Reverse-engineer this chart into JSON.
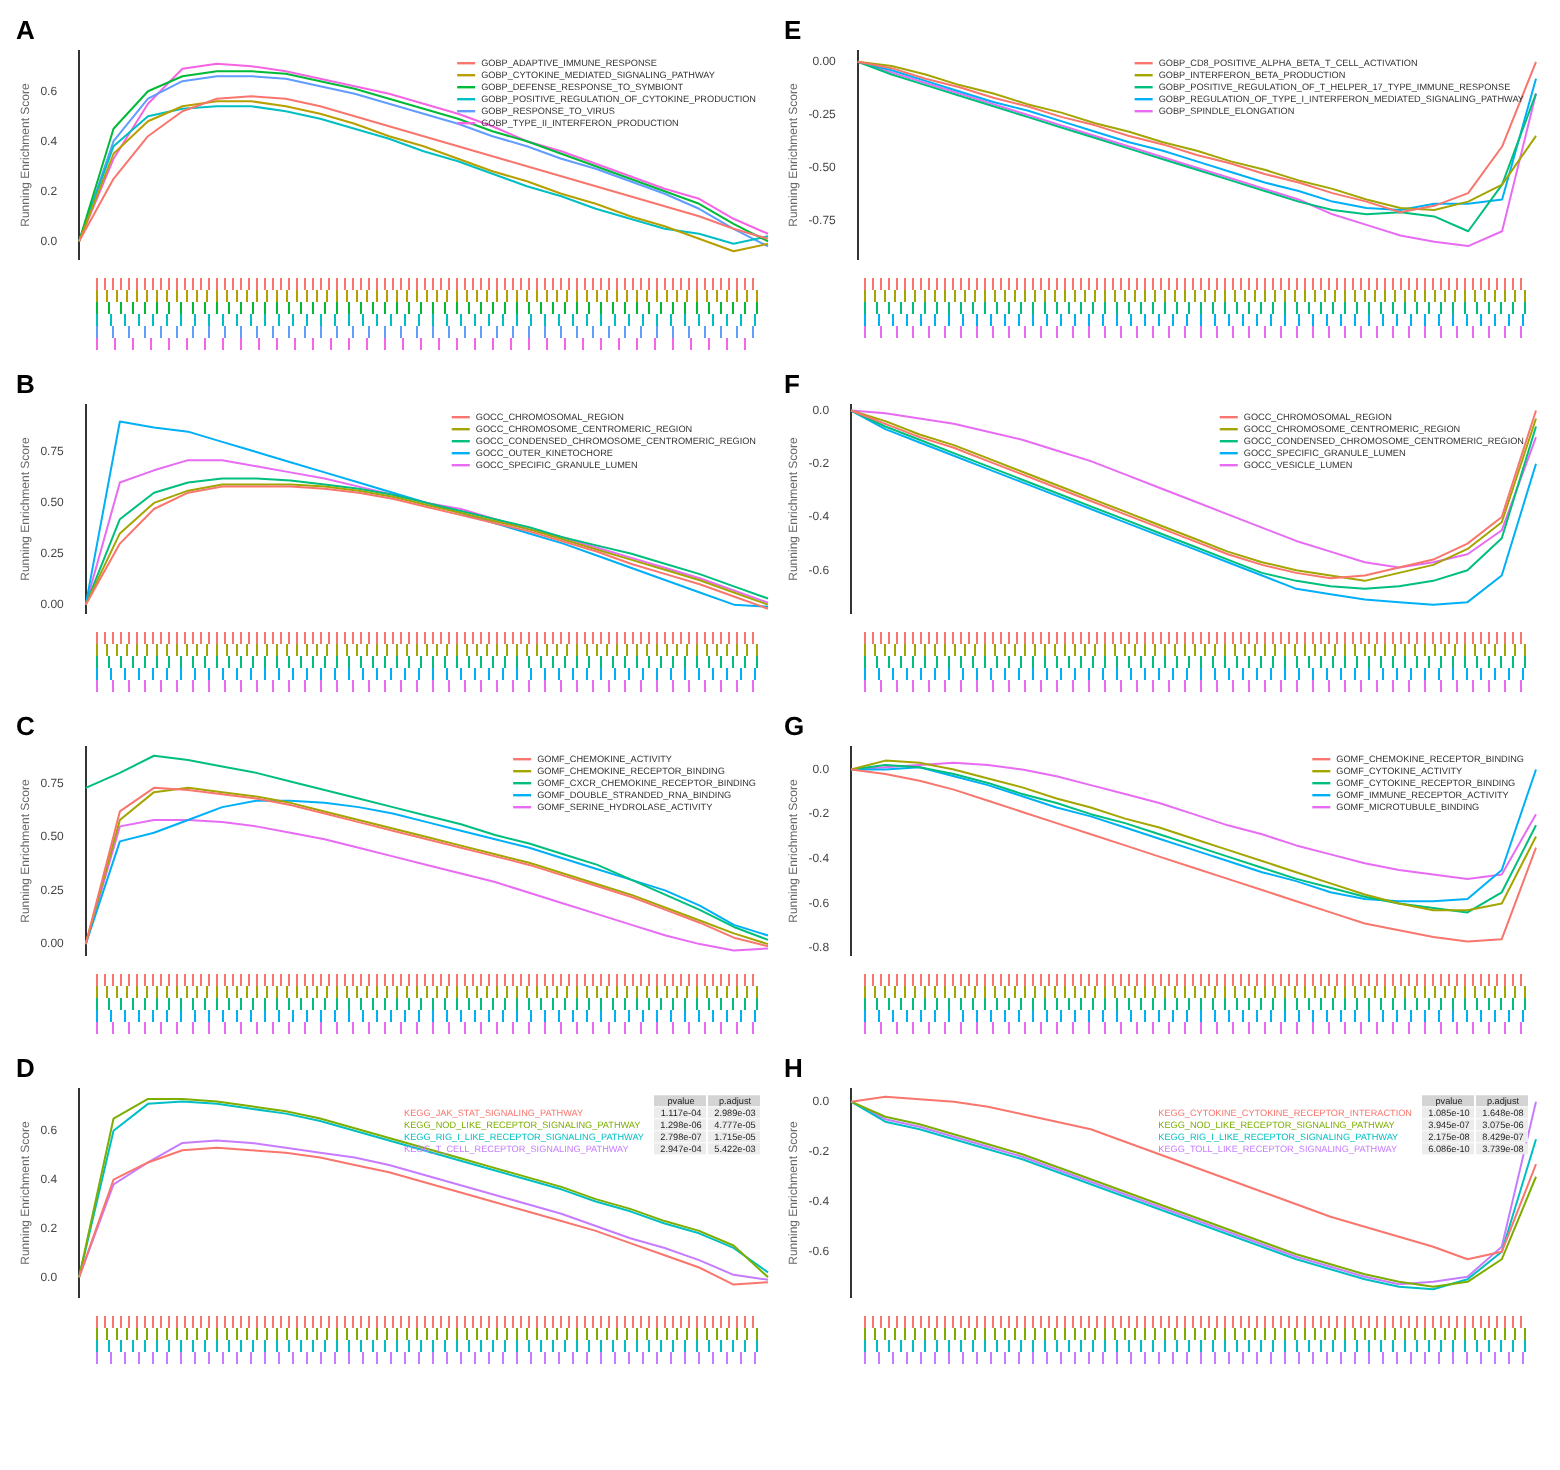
{
  "chart_data": [
    {
      "type": "line",
      "title": "A",
      "ylabel": "Running Enrichment Score",
      "categories": [
        null,
        null,
        null,
        null,
        null,
        null,
        null,
        null,
        null,
        null,
        null,
        null,
        null,
        null,
        null,
        null,
        null,
        null,
        null,
        null,
        null
      ],
      "ylim": [
        -0.07,
        0.76
      ],
      "yticks": [
        {
          "value": 0,
          "label": "0.0"
        },
        {
          "value": 0.2,
          "label": "0.2"
        },
        {
          "value": 0.4,
          "label": "0.4"
        },
        {
          "value": 0.6,
          "label": "0.6"
        }
      ],
      "tick_labels": "y",
      "legend": "top right",
      "series": [
        {
          "name": "GOBP_ADAPTIVE_IMMUNE_RESPONSE",
          "color": "#f8766d",
          "values": [
            0,
            0.25,
            0.42,
            0.52,
            0.57,
            0.58,
            0.57,
            0.54,
            0.5,
            0.46,
            0.42,
            0.38,
            0.34,
            0.3,
            0.26,
            0.22,
            0.18,
            0.14,
            0.1,
            0.05,
            0.01
          ]
        },
        {
          "name": "GOBP_CYTOKINE_MEDIATED_SIGNALING_PATHWAY",
          "color": "#b79f00",
          "values": [
            0,
            0.35,
            0.48,
            0.54,
            0.56,
            0.56,
            0.54,
            0.51,
            0.47,
            0.42,
            0.38,
            0.33,
            0.28,
            0.24,
            0.19,
            0.15,
            0.1,
            0.06,
            0.01,
            -0.04,
            -0.01
          ]
        },
        {
          "name": "GOBP_DEFENSE_RESPONSE_TO_SYMBIONT",
          "color": "#00ba38",
          "values": [
            0,
            0.45,
            0.6,
            0.66,
            0.68,
            0.68,
            0.67,
            0.64,
            0.61,
            0.57,
            0.53,
            0.49,
            0.44,
            0.4,
            0.35,
            0.3,
            0.25,
            0.2,
            0.15,
            0.07,
            0
          ]
        },
        {
          "name": "GOBP_POSITIVE_REGULATION_OF_CYTOKINE_PRODUCTION",
          "color": "#00bfc4",
          "values": [
            0,
            0.38,
            0.5,
            0.53,
            0.54,
            0.54,
            0.52,
            0.49,
            0.45,
            0.41,
            0.36,
            0.32,
            0.27,
            0.22,
            0.18,
            0.13,
            0.09,
            0.05,
            0.03,
            -0.01,
            0.02
          ]
        },
        {
          "name": "GOBP_RESPONSE_TO_VIRUS",
          "color": "#619cff",
          "values": [
            0,
            0.4,
            0.57,
            0.64,
            0.66,
            0.66,
            0.65,
            0.62,
            0.59,
            0.55,
            0.51,
            0.47,
            0.42,
            0.38,
            0.33,
            0.29,
            0.24,
            0.19,
            0.13,
            0.05,
            -0.02
          ]
        },
        {
          "name": "GOBP_TYPE_II_INTERFERON_PRODUCTION",
          "color": "#f564e3",
          "values": [
            0,
            0.33,
            0.55,
            0.69,
            0.71,
            0.7,
            0.68,
            0.65,
            0.62,
            0.59,
            0.55,
            0.51,
            0.46,
            0.4,
            0.36,
            0.31,
            0.26,
            0.21,
            0.17,
            0.09,
            0.03
          ]
        }
      ]
    },
    {
      "type": "line",
      "title": "B",
      "ylabel": "Running Enrichment Score",
      "categories": [
        null,
        null,
        null,
        null,
        null,
        null,
        null,
        null,
        null,
        null,
        null,
        null,
        null,
        null,
        null,
        null,
        null,
        null,
        null,
        null,
        null
      ],
      "ylim": [
        -0.04,
        0.98
      ],
      "yticks": [
        {
          "value": 0,
          "label": "0.00"
        },
        {
          "value": 0.25,
          "label": "0.25"
        },
        {
          "value": 0.5,
          "label": "0.50"
        },
        {
          "value": 0.75,
          "label": "0.75"
        }
      ],
      "tick_labels": "y",
      "legend": "top right",
      "series": [
        {
          "name": "GOCC_CHROMOSOMAL_REGION",
          "color": "#f8766d",
          "values": [
            0,
            0.3,
            0.47,
            0.55,
            0.58,
            0.58,
            0.58,
            0.57,
            0.55,
            0.52,
            0.48,
            0.44,
            0.4,
            0.36,
            0.31,
            0.26,
            0.2,
            0.15,
            0.1,
            0.04,
            -0.02
          ]
        },
        {
          "name": "GOCC_CHROMOSOME_CENTROMERIC_REGION",
          "color": "#a3a500",
          "values": [
            0,
            0.35,
            0.5,
            0.56,
            0.59,
            0.59,
            0.59,
            0.58,
            0.56,
            0.53,
            0.49,
            0.45,
            0.41,
            0.37,
            0.32,
            0.27,
            0.22,
            0.17,
            0.12,
            0.06,
            0
          ]
        },
        {
          "name": "GOCC_CONDENSED_CHROMOSOME_CENTROMERIC_REGION",
          "color": "#00bf7d",
          "values": [
            0,
            0.42,
            0.55,
            0.6,
            0.62,
            0.62,
            0.61,
            0.59,
            0.57,
            0.54,
            0.5,
            0.46,
            0.42,
            0.38,
            0.33,
            0.29,
            0.25,
            0.2,
            0.15,
            0.09,
            0.03
          ]
        },
        {
          "name": "GOCC_OUTER_KINETOCHORE",
          "color": "#00b0f6",
          "values": [
            0,
            0.9,
            0.87,
            0.85,
            0.8,
            0.75,
            0.7,
            0.65,
            0.6,
            0.55,
            0.5,
            0.45,
            0.4,
            0.35,
            0.3,
            0.24,
            0.18,
            0.12,
            0.06,
            0,
            -0.01
          ]
        },
        {
          "name": "GOCC_SPECIFIC_GRANULE_LUMEN",
          "color": "#e76bf3",
          "values": [
            0,
            0.6,
            0.66,
            0.71,
            0.71,
            0.68,
            0.65,
            0.62,
            0.58,
            0.54,
            0.5,
            0.47,
            0.42,
            0.37,
            0.33,
            0.28,
            0.23,
            0.18,
            0.13,
            0.07,
            0.01
          ]
        }
      ]
    },
    {
      "type": "line",
      "title": "C",
      "ylabel": "Running Enrichment Score",
      "categories": [
        null,
        null,
        null,
        null,
        null,
        null,
        null,
        null,
        null,
        null,
        null,
        null,
        null,
        null,
        null,
        null,
        null,
        null,
        null,
        null,
        null
      ],
      "ylim": [
        -0.05,
        0.92
      ],
      "yticks": [
        {
          "value": 0,
          "label": "0.00"
        },
        {
          "value": 0.25,
          "label": "0.25"
        },
        {
          "value": 0.5,
          "label": "0.50"
        },
        {
          "value": 0.75,
          "label": "0.75"
        }
      ],
      "tick_labels": "y",
      "legend": "top right",
      "series": [
        {
          "name": "GOMF_CHEMOKINE_ACTIVITY",
          "color": "#f8766d",
          "values": [
            0,
            0.62,
            0.73,
            0.72,
            0.7,
            0.68,
            0.65,
            0.61,
            0.57,
            0.53,
            0.49,
            0.45,
            0.41,
            0.37,
            0.32,
            0.27,
            0.22,
            0.16,
            0.1,
            0.03,
            -0.01
          ]
        },
        {
          "name": "GOMF_CHEMOKINE_RECEPTOR_BINDING",
          "color": "#a3a500",
          "values": [
            0,
            0.58,
            0.71,
            0.73,
            0.71,
            0.69,
            0.66,
            0.62,
            0.58,
            0.54,
            0.5,
            0.46,
            0.42,
            0.38,
            0.33,
            0.28,
            0.23,
            0.17,
            0.11,
            0.05,
            0
          ]
        },
        {
          "name": "GOMF_CXCR_CHEMOKINE_RECEPTOR_BINDING",
          "color": "#00bf7d",
          "values": [
            0.73,
            0.8,
            0.88,
            0.86,
            0.83,
            0.8,
            0.76,
            0.72,
            0.68,
            0.64,
            0.6,
            0.56,
            0.51,
            0.47,
            0.42,
            0.37,
            0.3,
            0.23,
            0.16,
            0.08,
            0.02
          ]
        },
        {
          "name": "GOMF_DOUBLE_STRANDED_RNA_BINDING",
          "color": "#00b0f6",
          "values": [
            0,
            0.48,
            0.52,
            0.58,
            0.64,
            0.67,
            0.67,
            0.66,
            0.64,
            0.61,
            0.57,
            0.53,
            0.49,
            0.45,
            0.4,
            0.35,
            0.3,
            0.25,
            0.18,
            0.09,
            0.04
          ]
        },
        {
          "name": "GOMF_SERINE_HYDROLASE_ACTIVITY",
          "color": "#e76bf3",
          "values": [
            0,
            0.55,
            0.58,
            0.58,
            0.57,
            0.55,
            0.52,
            0.49,
            0.45,
            0.41,
            0.37,
            0.33,
            0.29,
            0.24,
            0.19,
            0.14,
            0.09,
            0.04,
            0,
            -0.03,
            -0.02
          ]
        }
      ]
    },
    {
      "type": "line",
      "title": "D",
      "ylabel": "Running Enrichment Score",
      "categories": [
        null,
        null,
        null,
        null,
        null,
        null,
        null,
        null,
        null,
        null,
        null,
        null,
        null,
        null,
        null,
        null,
        null,
        null,
        null,
        null,
        null
      ],
      "ylim": [
        -0.08,
        0.77
      ],
      "yticks": [
        {
          "value": 0,
          "label": "0.0"
        },
        {
          "value": 0.2,
          "label": "0.2"
        },
        {
          "value": 0.4,
          "label": "0.4"
        },
        {
          "value": 0.6,
          "label": "0.6"
        }
      ],
      "tick_labels": "y",
      "legend": "top right",
      "annotations": [
        "pvalue",
        "p.adjust",
        "1.117e-04",
        "2.989e-03",
        "1.298e-06",
        "4.777e-05",
        "2.798e-07",
        "1.715e-05",
        "2.947e-04",
        "5.422e-03"
      ],
      "series": [
        {
          "name": "KEGG_JAK_STAT_SIGNALING_PATHWAY",
          "color": "#f8766d",
          "values": [
            0,
            0.4,
            0.47,
            0.52,
            0.53,
            0.52,
            0.51,
            0.49,
            0.46,
            0.43,
            0.39,
            0.35,
            0.31,
            0.27,
            0.23,
            0.19,
            0.14,
            0.09,
            0.04,
            -0.03,
            -0.02
          ]
        },
        {
          "name": "KEGG_NOD_LIKE_RECEPTOR_SIGNALING_PATHWAY",
          "color": "#7cae00",
          "values": [
            0,
            0.65,
            0.73,
            0.73,
            0.72,
            0.7,
            0.68,
            0.65,
            0.61,
            0.57,
            0.53,
            0.49,
            0.45,
            0.41,
            0.37,
            0.32,
            0.28,
            0.23,
            0.19,
            0.13,
            0
          ]
        },
        {
          "name": "KEGG_RIG_I_LIKE_RECEPTOR_SIGNALING_PATHWAY",
          "color": "#00bfc4",
          "values": [
            0,
            0.6,
            0.71,
            0.72,
            0.71,
            0.69,
            0.67,
            0.64,
            0.6,
            0.56,
            0.52,
            0.48,
            0.44,
            0.4,
            0.36,
            0.31,
            0.27,
            0.22,
            0.18,
            0.12,
            0.02
          ]
        },
        {
          "name": "KEGG_T_CELL_RECEPTOR_SIGNALING_PATHWAY",
          "color": "#c77cff",
          "values": [
            0,
            0.38,
            0.47,
            0.55,
            0.56,
            0.55,
            0.53,
            0.51,
            0.49,
            0.46,
            0.42,
            0.38,
            0.34,
            0.3,
            0.26,
            0.21,
            0.16,
            0.12,
            0.07,
            0.01,
            -0.01
          ]
        }
      ]
    },
    {
      "type": "line",
      "title": "E",
      "ylabel": "Running Enrichment Score",
      "categories": [
        null,
        null,
        null,
        null,
        null,
        null,
        null,
        null,
        null,
        null,
        null,
        null,
        null,
        null,
        null,
        null,
        null,
        null,
        null,
        null,
        null
      ],
      "ylim": [
        -0.93,
        0.05
      ],
      "yticks": [
        {
          "value": 0,
          "label": "0.00"
        },
        {
          "value": -0.25,
          "label": "-0.25"
        },
        {
          "value": -0.5,
          "label": "-0.50"
        },
        {
          "value": -0.75,
          "label": "-0.75"
        }
      ],
      "tick_labels": "y",
      "legend": "top right",
      "series": [
        {
          "name": "GOBP_CD8_POSITIVE_ALPHA_BETA_T_CELL_ACTIVATION",
          "color": "#f8766d",
          "values": [
            0,
            -0.03,
            -0.08,
            -0.12,
            -0.17,
            -0.21,
            -0.26,
            -0.3,
            -0.35,
            -0.39,
            -0.44,
            -0.48,
            -0.53,
            -0.57,
            -0.62,
            -0.66,
            -0.71,
            -0.68,
            -0.62,
            -0.4,
            0
          ]
        },
        {
          "name": "GOBP_INTERFERON_BETA_PRODUCTION",
          "color": "#a3a500",
          "values": [
            0,
            -0.02,
            -0.06,
            -0.11,
            -0.15,
            -0.2,
            -0.24,
            -0.29,
            -0.33,
            -0.38,
            -0.42,
            -0.47,
            -0.51,
            -0.56,
            -0.6,
            -0.65,
            -0.69,
            -0.7,
            -0.66,
            -0.58,
            -0.35
          ]
        },
        {
          "name": "GOBP_POSITIVE_REGULATION_OF_T_HELPER_17_TYPE_IMMUNE_RESPONSE",
          "color": "#00bf7d",
          "values": [
            0,
            -0.06,
            -0.11,
            -0.16,
            -0.21,
            -0.26,
            -0.31,
            -0.36,
            -0.41,
            -0.46,
            -0.51,
            -0.56,
            -0.61,
            -0.66,
            -0.7,
            -0.72,
            -0.71,
            -0.73,
            -0.8,
            -0.58,
            -0.15
          ]
        },
        {
          "name": "GOBP_REGULATION_OF_TYPE_I_INTERFERON_MEDIATED_SIGNALING_PATHWAY",
          "color": "#00b0f6",
          "values": [
            0,
            -0.04,
            -0.09,
            -0.14,
            -0.19,
            -0.23,
            -0.28,
            -0.33,
            -0.38,
            -0.42,
            -0.47,
            -0.52,
            -0.57,
            -0.61,
            -0.66,
            -0.69,
            -0.7,
            -0.67,
            -0.67,
            -0.65,
            -0.08
          ]
        },
        {
          "name": "GOBP_SPINDLE_ELONGATION",
          "color": "#e76bf3",
          "values": [
            0,
            -0.05,
            -0.1,
            -0.15,
            -0.2,
            -0.25,
            -0.3,
            -0.35,
            -0.4,
            -0.45,
            -0.5,
            -0.55,
            -0.6,
            -0.65,
            -0.72,
            -0.77,
            -0.82,
            -0.85,
            -0.87,
            -0.8,
            -0.15
          ]
        }
      ]
    },
    {
      "type": "line",
      "title": "F",
      "ylabel": "Running Enrichment Score",
      "categories": [
        null,
        null,
        null,
        null,
        null,
        null,
        null,
        null,
        null,
        null,
        null,
        null,
        null,
        null,
        null,
        null,
        null,
        null,
        null,
        null,
        null
      ],
      "ylim": [
        -0.76,
        0.02
      ],
      "yticks": [
        {
          "value": 0,
          "label": "0.0"
        },
        {
          "value": -0.2,
          "label": "-0.2"
        },
        {
          "value": -0.4,
          "label": "-0.4"
        },
        {
          "value": -0.6,
          "label": "-0.6"
        }
      ],
      "tick_labels": "y",
      "legend": "top right",
      "series": [
        {
          "name": "GOCC_CHROMOSOMAL_REGION",
          "color": "#f8766d",
          "values": [
            0,
            -0.05,
            -0.1,
            -0.14,
            -0.19,
            -0.24,
            -0.29,
            -0.34,
            -0.39,
            -0.44,
            -0.49,
            -0.54,
            -0.58,
            -0.61,
            -0.63,
            -0.62,
            -0.59,
            -0.56,
            -0.5,
            -0.4,
            0
          ]
        },
        {
          "name": "GOCC_CHROMOSOME_CENTROMERIC_REGION",
          "color": "#a3a500",
          "values": [
            0,
            -0.04,
            -0.09,
            -0.13,
            -0.18,
            -0.23,
            -0.28,
            -0.33,
            -0.38,
            -0.43,
            -0.48,
            -0.53,
            -0.57,
            -0.6,
            -0.62,
            -0.64,
            -0.61,
            -0.58,
            -0.52,
            -0.42,
            -0.03
          ]
        },
        {
          "name": "GOCC_CONDENSED_CHROMOSOME_CENTROMERIC_REGION",
          "color": "#00bf7d",
          "values": [
            0,
            -0.06,
            -0.11,
            -0.16,
            -0.21,
            -0.26,
            -0.31,
            -0.36,
            -0.41,
            -0.46,
            -0.51,
            -0.56,
            -0.61,
            -0.64,
            -0.66,
            -0.67,
            -0.66,
            -0.64,
            -0.6,
            -0.48,
            -0.06
          ]
        },
        {
          "name": "GOCC_SPECIFIC_GRANULE_LUMEN",
          "color": "#00b0f6",
          "values": [
            0,
            -0.07,
            -0.12,
            -0.17,
            -0.22,
            -0.27,
            -0.32,
            -0.37,
            -0.42,
            -0.47,
            -0.52,
            -0.57,
            -0.62,
            -0.67,
            -0.69,
            -0.71,
            -0.72,
            -0.73,
            -0.72,
            -0.62,
            -0.2
          ]
        },
        {
          "name": "GOCC_VESICLE_LUMEN",
          "color": "#e76bf3",
          "values": [
            0,
            -0.01,
            -0.03,
            -0.05,
            -0.08,
            -0.11,
            -0.15,
            -0.19,
            -0.24,
            -0.29,
            -0.34,
            -0.39,
            -0.44,
            -0.49,
            -0.53,
            -0.57,
            -0.59,
            -0.57,
            -0.54,
            -0.45,
            -0.1
          ]
        }
      ]
    },
    {
      "type": "line",
      "title": "G",
      "ylabel": "Running Enrichment Score",
      "categories": [
        null,
        null,
        null,
        null,
        null,
        null,
        null,
        null,
        null,
        null,
        null,
        null,
        null,
        null,
        null,
        null,
        null,
        null,
        null,
        null,
        null
      ],
      "ylim": [
        -0.83,
        0.1
      ],
      "yticks": [
        {
          "value": 0,
          "label": "0.0"
        },
        {
          "value": -0.2,
          "label": "-0.2"
        },
        {
          "value": -0.4,
          "label": "-0.4"
        },
        {
          "value": -0.6,
          "label": "-0.6"
        },
        {
          "value": -0.8,
          "label": "-0.8"
        }
      ],
      "tick_labels": "y",
      "legend": "top right",
      "series": [
        {
          "name": "GOMF_CHEMOKINE_RECEPTOR_BINDING",
          "color": "#f8766d",
          "values": [
            0,
            -0.02,
            -0.05,
            -0.09,
            -0.14,
            -0.19,
            -0.24,
            -0.29,
            -0.34,
            -0.39,
            -0.44,
            -0.49,
            -0.54,
            -0.59,
            -0.64,
            -0.69,
            -0.72,
            -0.75,
            -0.77,
            -0.76,
            -0.35
          ]
        },
        {
          "name": "GOMF_CYTOKINE_ACTIVITY",
          "color": "#a3a500",
          "values": [
            0,
            0.04,
            0.03,
            0,
            -0.04,
            -0.08,
            -0.13,
            -0.17,
            -0.22,
            -0.26,
            -0.31,
            -0.36,
            -0.41,
            -0.46,
            -0.51,
            -0.56,
            -0.6,
            -0.63,
            -0.63,
            -0.6,
            -0.3
          ]
        },
        {
          "name": "GOMF_CYTOKINE_RECEPTOR_BINDING",
          "color": "#00bf7d",
          "values": [
            0,
            0.02,
            0.01,
            -0.02,
            -0.06,
            -0.11,
            -0.15,
            -0.2,
            -0.24,
            -0.29,
            -0.34,
            -0.39,
            -0.44,
            -0.49,
            -0.53,
            -0.57,
            -0.6,
            -0.62,
            -0.64,
            -0.55,
            -0.25
          ]
        },
        {
          "name": "GOMF_IMMUNE_RECEPTOR_ACTIVITY",
          "color": "#00b0f6",
          "values": [
            0,
            0,
            0.01,
            -0.03,
            -0.07,
            -0.12,
            -0.17,
            -0.21,
            -0.26,
            -0.31,
            -0.36,
            -0.41,
            -0.46,
            -0.5,
            -0.55,
            -0.58,
            -0.59,
            -0.59,
            -0.58,
            -0.45,
            0
          ]
        },
        {
          "name": "GOMF_MICROTUBULE_BINDING",
          "color": "#e76bf3",
          "values": [
            0,
            0.01,
            0.02,
            0.03,
            0.02,
            0,
            -0.03,
            -0.07,
            -0.11,
            -0.15,
            -0.2,
            -0.25,
            -0.29,
            -0.34,
            -0.38,
            -0.42,
            -0.45,
            -0.47,
            -0.49,
            -0.47,
            -0.2
          ]
        }
      ]
    },
    {
      "type": "line",
      "title": "H",
      "ylabel": "Running Enrichment Score",
      "categories": [
        null,
        null,
        null,
        null,
        null,
        null,
        null,
        null,
        null,
        null,
        null,
        null,
        null,
        null,
        null,
        null,
        null,
        null,
        null,
        null,
        null
      ],
      "ylim": [
        -0.78,
        0.05
      ],
      "yticks": [
        {
          "value": 0,
          "label": "0.0"
        },
        {
          "value": -0.2,
          "label": "-0.2"
        },
        {
          "value": -0.4,
          "label": "-0.4"
        },
        {
          "value": -0.6,
          "label": "-0.6"
        }
      ],
      "tick_labels": "y",
      "legend": "top right",
      "annotations": [
        "pvalue",
        "p.adjust",
        "1.085e-10",
        "1.648e-08",
        "3.945e-07",
        "3.075e-06",
        "2.175e-08",
        "8.429e-07",
        "6.086e-10",
        "3.739e-08"
      ],
      "series": [
        {
          "name": "KEGG_CYTOKINE_CYTOKINE_RECEPTOR_INTERACTION",
          "color": "#f8766d",
          "values": [
            0,
            0.02,
            0.01,
            0,
            -0.02,
            -0.05,
            -0.08,
            -0.11,
            -0.16,
            -0.21,
            -0.26,
            -0.31,
            -0.36,
            -0.41,
            -0.46,
            -0.5,
            -0.54,
            -0.58,
            -0.63,
            -0.6,
            -0.25
          ]
        },
        {
          "name": "KEGG_NOD_LIKE_RECEPTOR_SIGNALING_PATHWAY",
          "color": "#7cae00",
          "values": [
            0,
            -0.06,
            -0.09,
            -0.13,
            -0.17,
            -0.21,
            -0.26,
            -0.31,
            -0.36,
            -0.41,
            -0.46,
            -0.51,
            -0.56,
            -0.61,
            -0.65,
            -0.69,
            -0.72,
            -0.74,
            -0.72,
            -0.63,
            -0.3
          ]
        },
        {
          "name": "KEGG_RIG_I_LIKE_RECEPTOR_SIGNALING_PATHWAY",
          "color": "#00bfc4",
          "values": [
            0,
            -0.08,
            -0.11,
            -0.15,
            -0.19,
            -0.23,
            -0.28,
            -0.33,
            -0.38,
            -0.43,
            -0.48,
            -0.53,
            -0.58,
            -0.63,
            -0.67,
            -0.71,
            -0.74,
            -0.75,
            -0.71,
            -0.6,
            -0.15
          ]
        },
        {
          "name": "KEGG_TOLL_LIKE_RECEPTOR_SIGNALING_PATHWAY",
          "color": "#c77cff",
          "values": [
            0,
            -0.07,
            -0.1,
            -0.14,
            -0.18,
            -0.22,
            -0.27,
            -0.32,
            -0.37,
            -0.42,
            -0.47,
            -0.52,
            -0.57,
            -0.62,
            -0.66,
            -0.7,
            -0.73,
            -0.72,
            -0.7,
            -0.58,
            0
          ]
        }
      ]
    }
  ]
}
